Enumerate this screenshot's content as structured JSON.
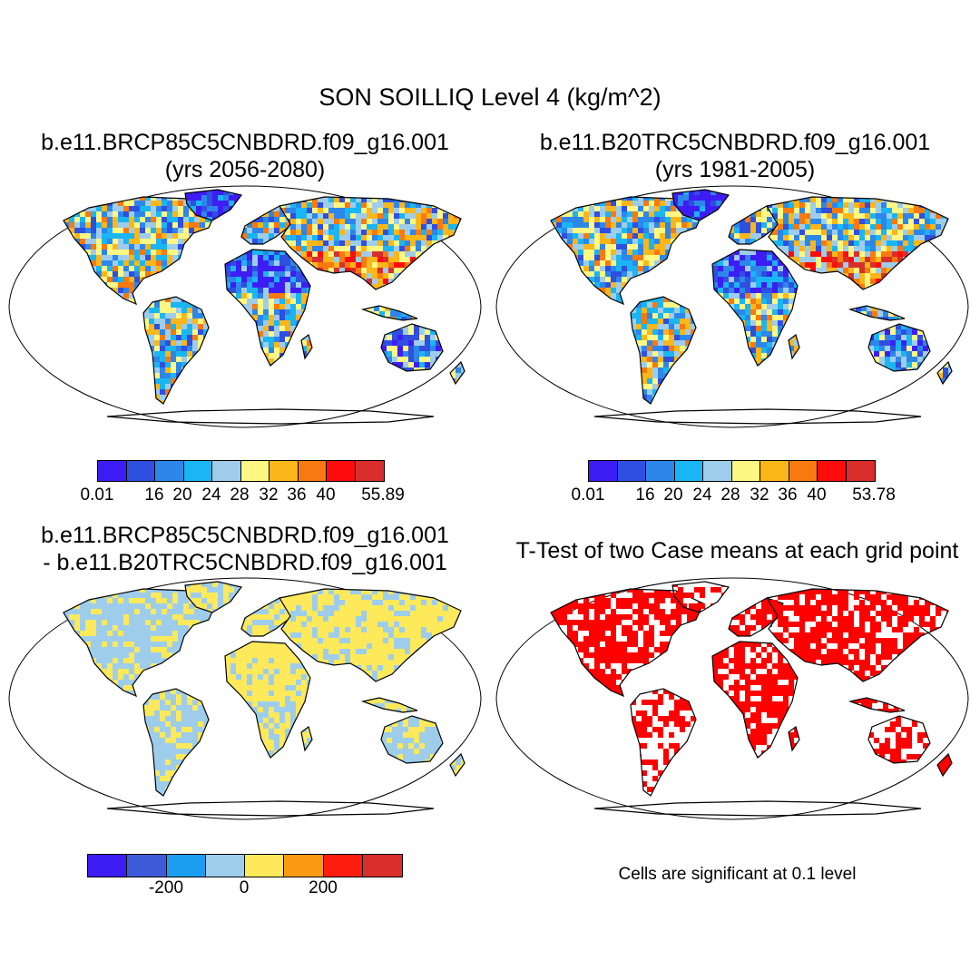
{
  "figure": {
    "title": "SON SOILLIQ Level 4 (kg/m^2)",
    "note": "Cells are significant at 0.1 level"
  },
  "panels": [
    {
      "id": "p1",
      "title_line1": "b.e11.BRCP85C5CNBDRD.f09_g16.001",
      "title_line2": "(yrs 2056-2080)"
    },
    {
      "id": "p2",
      "title_line1": "b.e11.B20TRC5CNBDRD.f09_g16.001",
      "title_line2": "(yrs 1981-2005)"
    },
    {
      "id": "p3",
      "title_line1": "b.e11.BRCP85C5CNBDRD.f09_g16.001",
      "title_line2": "- b.e11.B20TRC5CNBDRD.f09_g16.001"
    },
    {
      "id": "p4",
      "title_line1": "T-Test of two Case means at each grid point",
      "title_line2": ""
    }
  ],
  "colorbars": {
    "case1": {
      "colors": [
        "#3e1df5",
        "#2f4fe0",
        "#2d86ea",
        "#19b6f3",
        "#9ecdec",
        "#fef784",
        "#fbb619",
        "#f8790f",
        "#fc0d0c",
        "#d82f2c"
      ],
      "labels": [
        "0.01",
        "16",
        "20",
        "24",
        "28",
        "32",
        "36",
        "40",
        "55.89"
      ]
    },
    "case2": {
      "colors": [
        "#3e1df5",
        "#2f4fe0",
        "#2d86ea",
        "#19b6f3",
        "#9ecdec",
        "#fef784",
        "#fbb619",
        "#f8790f",
        "#fc0d0c",
        "#d82f2c"
      ],
      "labels": [
        "0.01",
        "16",
        "20",
        "24",
        "28",
        "32",
        "36",
        "40",
        "53.78"
      ]
    },
    "diff": {
      "colors": [
        "#3e1df5",
        "#3d5bd8",
        "#1b9ef0",
        "#9ecdec",
        "#fde95a",
        "#fa9a12",
        "#fc1d0e",
        "#d82f2c"
      ],
      "labels": [
        "-200",
        "0",
        "200"
      ]
    }
  },
  "colors": {
    "significant": "#ff0000",
    "diff_positive": "#fde95a",
    "diff_negative": "#9ecdec",
    "outline": "#000000"
  }
}
